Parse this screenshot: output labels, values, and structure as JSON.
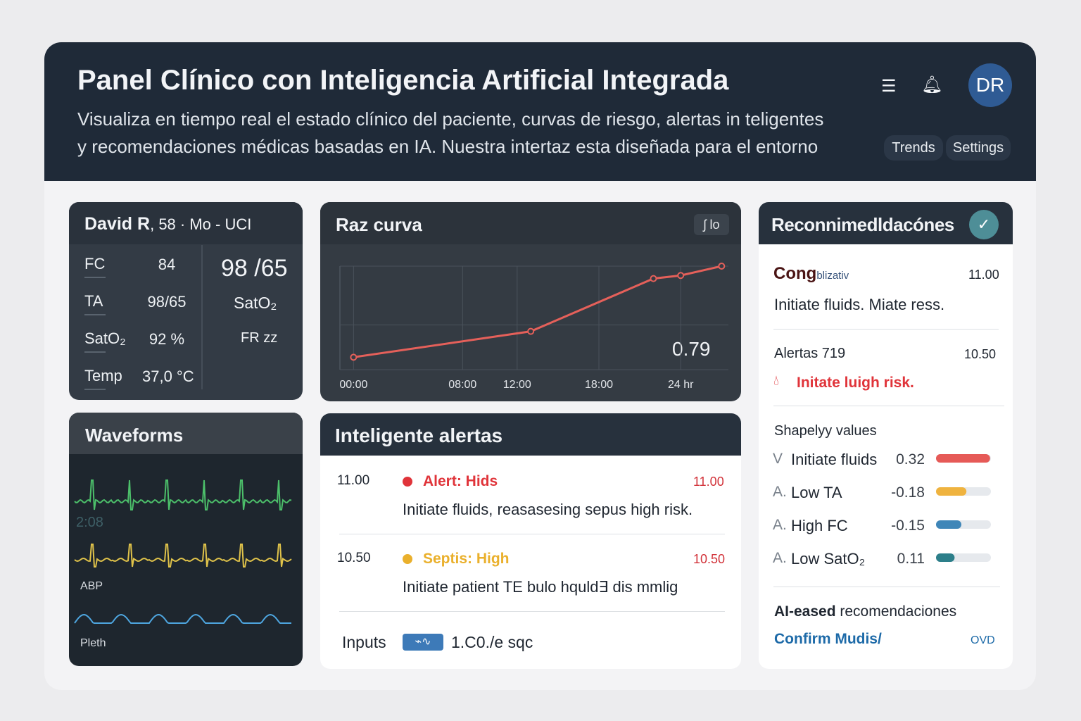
{
  "header": {
    "title": "Panel Clínico con Inteligencia Artificial Integrada",
    "subtitle": [
      "Visualiza en tiempo real el estado clínico del paciente, curvas de riesgo, alertas in teligentes",
      "y recomendaciones médicas basadas en IA. Nuestra intertaz esta diseñada para el entorno"
    ],
    "avatar": "DR",
    "tabs": [
      "Trends",
      "Settings"
    ]
  },
  "patient": {
    "name": "David R",
    "details": ", 58 · Mo - UCI",
    "vitals": [
      {
        "label": "FC",
        "value": "84"
      },
      {
        "label": "TA",
        "value": "98/65"
      },
      {
        "label": "SatO₂",
        "value": "92 %"
      },
      {
        "label": "Temp",
        "value": "37,0 °C"
      }
    ],
    "side": [
      "98 /65",
      "SatO₂",
      "FR zz"
    ]
  },
  "waveforms": {
    "title": "Waveforms",
    "labels": [
      "2:08",
      "ABP",
      "Pleth"
    ]
  },
  "chart_data": {
    "type": "line",
    "title": "Raz curva",
    "badge": "ʃ lo",
    "x": [
      0,
      13,
      22,
      24,
      27
    ],
    "values": [
      0.12,
      0.37,
      0.88,
      0.91,
      1.0
    ],
    "xlim": [
      -1,
      27.5
    ],
    "ylim": [
      0,
      1
    ],
    "xticks": [
      {
        "value": 0,
        "label": "00:00"
      },
      {
        "value": 8,
        "label": "08:00"
      },
      {
        "value": 12,
        "label": "12:00"
      },
      {
        "value": 18,
        "label": "18:00"
      },
      {
        "value": 24,
        "label": "24 hr"
      }
    ],
    "annotation": "0.79",
    "color": "#e5605a",
    "grid": true
  },
  "alerts": {
    "title": "Inteligente alertas",
    "items": [
      {
        "time": "11.00",
        "label": "Alert: Hids",
        "time_right": "11.00",
        "text": "Initiate fluids, reasasesing sepus high risk.",
        "color": "#e0343a"
      },
      {
        "time": "10.50",
        "label": "Septis: High",
        "time_right": "10.50",
        "text": "Initiate patient TE bulo hquld∃ dis mmlig",
        "color": "#eab02c"
      }
    ],
    "inputs_label": "Inputs",
    "inputs_value": "1.C0./e sqc"
  },
  "recommendations": {
    "title": "Reconnimedldacónes",
    "first": {
      "title": "Cong",
      "title_small": "blizativ",
      "time": "11.00",
      "text": "Initiate fluids. Miate ress."
    },
    "second": {
      "title": "Alertas 719",
      "time": "10.50",
      "text": "Initate luigh risk."
    },
    "shapley": {
      "title": "Shapelyy values",
      "labels": [
        "Initiate fluids",
        "Low TA",
        "High FC",
        "Low SatO₂"
      ],
      "values": [
        0.32,
        -0.18,
        -0.15,
        0.11
      ],
      "colors": [
        "#e65a57",
        "#efb33f",
        "#3f86b8",
        "#2d7f8a"
      ]
    },
    "footer_bold": "AI-eased",
    "footer": " recomendaciones",
    "link": "Confirm Mudis/",
    "link_right": "OVD"
  }
}
